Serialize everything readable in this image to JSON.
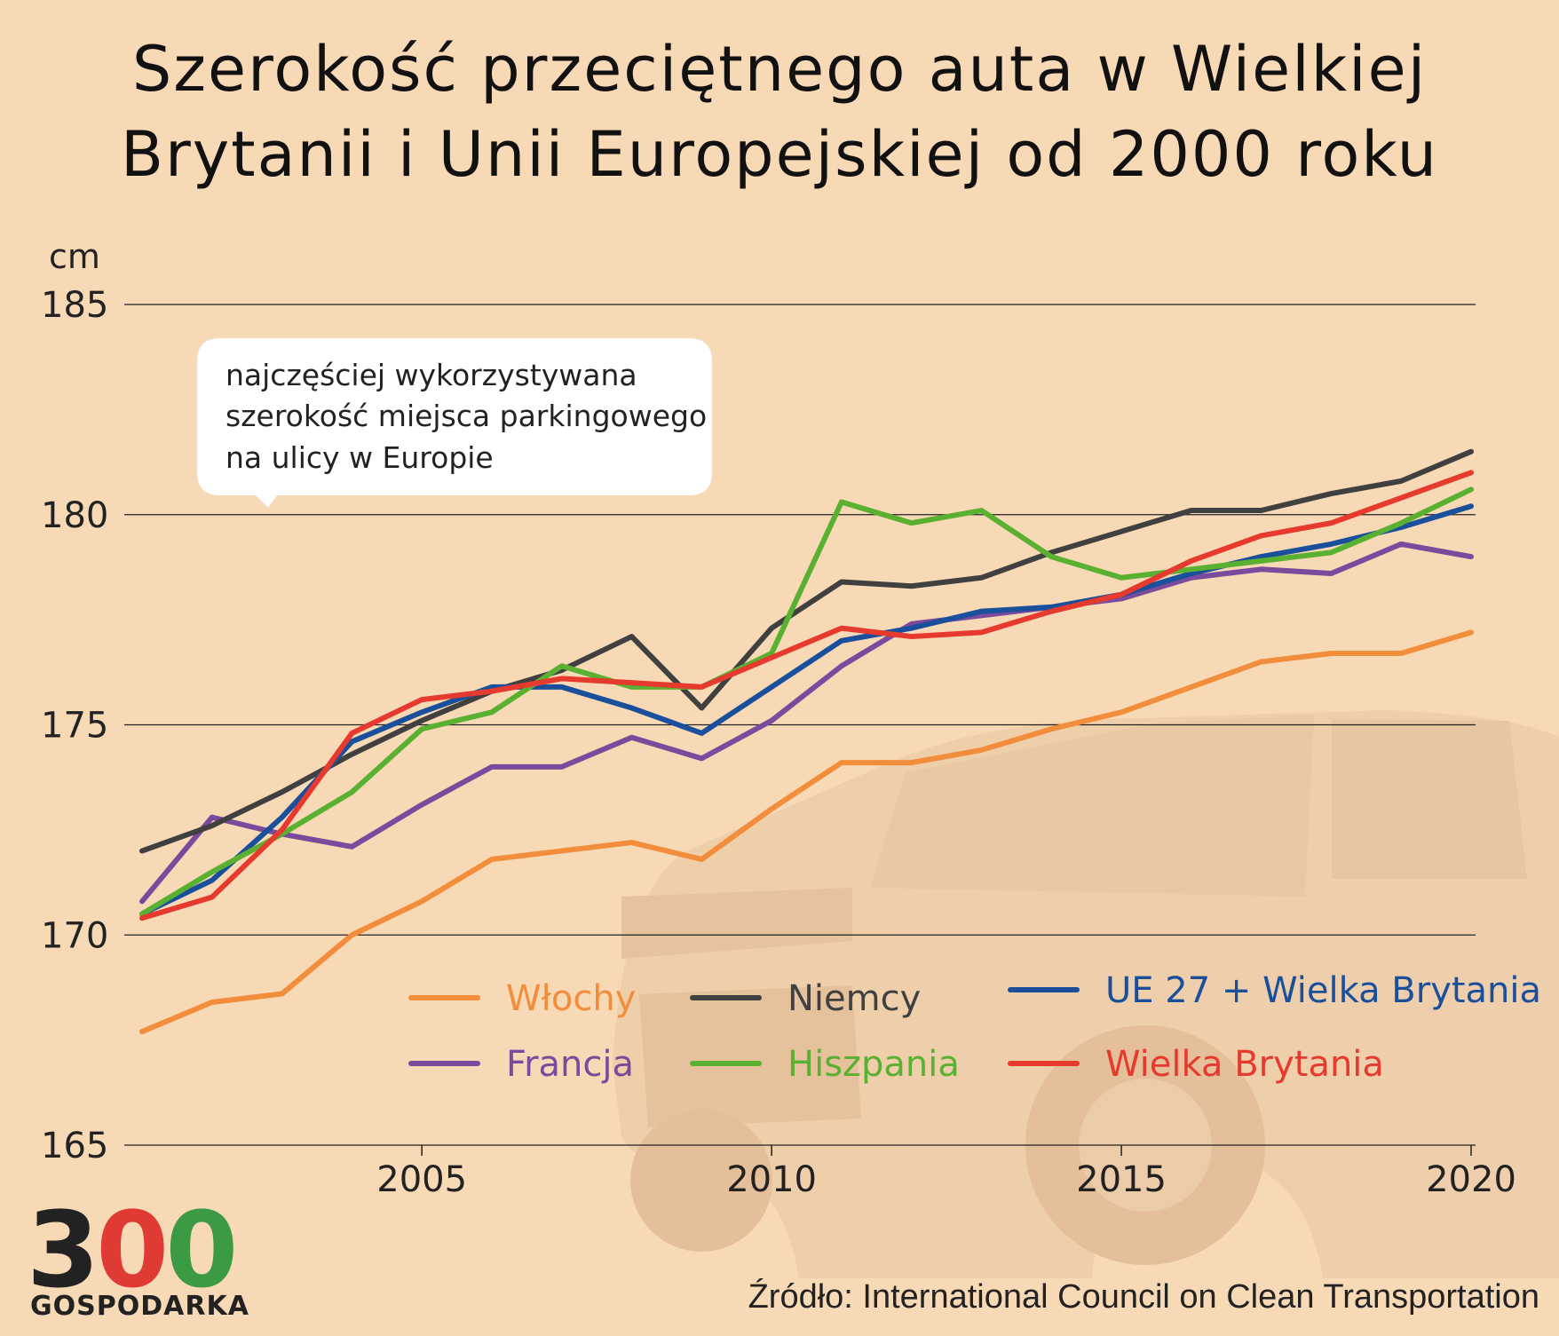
{
  "title": {
    "line1": "Szerokość przeciętnego auta w Wielkiej",
    "line2": "Brytanii i Unii Europejskiej od 2000 roku"
  },
  "annotation": {
    "line1": "najczęściej wykorzystywana",
    "line2": "szerokość miejsca parkingowego",
    "line3": "na ulicy w Europie",
    "value": 180
  },
  "source": "Źródło: International Council on Clean Transportation",
  "logo": {
    "digit1": "3",
    "digit2": "0",
    "digit3": "0",
    "word": "GOSPODARKA",
    "colors": [
      "#222222",
      "#e03a35",
      "#3c9a45"
    ]
  },
  "chart_data": {
    "type": "line",
    "title": "Szerokość przeciętnego auta w Wielkiej Brytanii i Unii Europejskiej od 2000 roku",
    "unit": "cm",
    "ylim": [
      165,
      185
    ],
    "yticks": [
      165,
      170,
      175,
      180,
      185
    ],
    "xlim": [
      2001,
      2020
    ],
    "xticks": [
      2005,
      2010,
      2015,
      2020
    ],
    "grid": "horizontal",
    "legend_position": "bottom-right",
    "x": [
      2001,
      2002,
      2003,
      2004,
      2005,
      2006,
      2007,
      2008,
      2009,
      2010,
      2011,
      2012,
      2013,
      2014,
      2015,
      2016,
      2017,
      2018,
      2019,
      2020
    ],
    "series": [
      {
        "name": "Włochy",
        "color": "#f28d3c",
        "values": [
          167.7,
          168.4,
          168.6,
          170.0,
          170.8,
          171.8,
          172.0,
          172.2,
          171.8,
          173.0,
          174.1,
          174.1,
          174.4,
          174.9,
          175.3,
          175.9,
          176.5,
          176.7,
          176.7,
          177.2
        ]
      },
      {
        "name": "Niemcy",
        "color": "#404040",
        "values": [
          172.0,
          172.6,
          173.4,
          174.3,
          175.1,
          175.8,
          176.3,
          177.1,
          175.4,
          177.3,
          178.4,
          178.3,
          178.5,
          179.1,
          179.6,
          180.1,
          180.1,
          180.5,
          180.8,
          181.5
        ]
      },
      {
        "name": "UE 27 + Wielka Brytania",
        "color": "#1a4f9c",
        "values": [
          170.5,
          171.3,
          172.8,
          174.6,
          175.3,
          175.9,
          175.9,
          175.4,
          174.8,
          175.9,
          177.0,
          177.3,
          177.7,
          177.8,
          178.1,
          178.6,
          179.0,
          179.3,
          179.7,
          180.2
        ]
      },
      {
        "name": "Francja",
        "color": "#7a4a9c",
        "values": [
          170.8,
          172.8,
          172.4,
          172.1,
          173.1,
          174.0,
          174.0,
          174.7,
          174.2,
          175.1,
          176.4,
          177.4,
          177.6,
          177.8,
          178.0,
          178.5,
          178.7,
          178.6,
          179.3,
          179.0
        ]
      },
      {
        "name": "Hiszpania",
        "color": "#5ab030",
        "values": [
          170.5,
          171.5,
          172.4,
          173.4,
          174.9,
          175.3,
          176.4,
          175.9,
          175.9,
          176.7,
          180.3,
          179.8,
          180.1,
          179.0,
          178.5,
          178.7,
          178.9,
          179.1,
          179.8,
          180.6
        ]
      },
      {
        "name": "Wielka Brytania",
        "color": "#e63a2e",
        "values": [
          170.4,
          170.9,
          172.5,
          174.8,
          175.6,
          175.8,
          176.1,
          176.0,
          175.9,
          176.6,
          177.3,
          177.1,
          177.2,
          177.7,
          178.1,
          178.9,
          179.5,
          179.8,
          180.4,
          181.0
        ]
      }
    ]
  }
}
